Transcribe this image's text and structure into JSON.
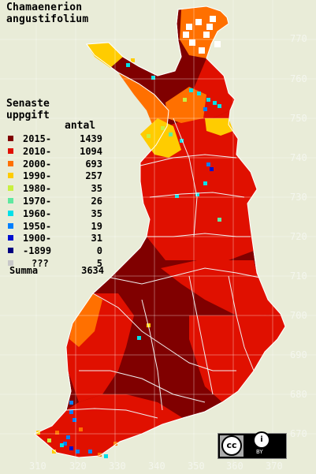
{
  "title": {
    "line1": "Chamaenerion",
    "line2": "angustifolium"
  },
  "legend": {
    "heading1": "Senaste",
    "heading2": "uppgift",
    "count_header": "antal",
    "rows": [
      {
        "label": "2015-",
        "count": "1439",
        "color": "#800000"
      },
      {
        "label": "2010-",
        "count": "1094",
        "color": "#e01000"
      },
      {
        "label": "2000-",
        "count": "693",
        "color": "#ff7000"
      },
      {
        "label": "1990-",
        "count": "257",
        "color": "#ffcc00"
      },
      {
        "label": "1980-",
        "count": "35",
        "color": "#c8f040"
      },
      {
        "label": "1970-",
        "count": "26",
        "color": "#60e8a0"
      },
      {
        "label": "1960-",
        "count": "35",
        "color": "#00e0e8"
      },
      {
        "label": "1950-",
        "count": "19",
        "color": "#0080ff"
      },
      {
        "label": "1900-",
        "count": "31",
        "color": "#0010d0"
      },
      {
        "label": "-1899",
        "count": "0",
        "color": "#000080"
      },
      {
        "label": "???",
        "count": "5",
        "color": "#c8c8c8"
      }
    ],
    "summa_label": "Summa",
    "summa_count": "3634"
  },
  "axes": {
    "x_ticks": [
      "310",
      "320",
      "330",
      "340",
      "350",
      "360",
      "370"
    ],
    "y_ticks": [
      "770",
      "760",
      "750",
      "740",
      "730",
      "720",
      "710",
      "700",
      "690",
      "680",
      "670"
    ]
  },
  "license_badge": {
    "text": "BY",
    "icons": [
      "cc-icon",
      "attribution-icon"
    ]
  },
  "colors": {
    "background": "#e9ecd8",
    "outline": "#ffffff"
  }
}
